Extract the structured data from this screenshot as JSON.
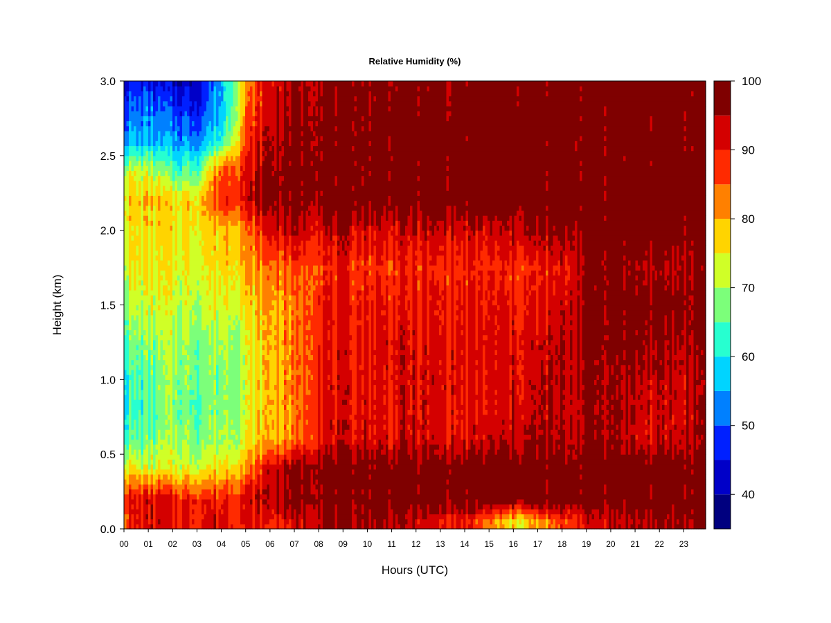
{
  "chart_data": {
    "type": "heatmap",
    "title": "Relative Humidity (%)",
    "xlabel": "Hours (UTC)",
    "ylabel": "Height (km)",
    "xlim": [
      0,
      23.9
    ],
    "ylim": [
      0,
      3.0
    ],
    "x_ticks": [
      "00",
      "01",
      "02",
      "03",
      "04",
      "05",
      "06",
      "07",
      "08",
      "09",
      "10",
      "11",
      "12",
      "13",
      "14",
      "15",
      "16",
      "17",
      "18",
      "19",
      "20",
      "21",
      "22",
      "23"
    ],
    "y_ticks": [
      "0.0",
      "0.5",
      "1.0",
      "1.5",
      "2.0",
      "2.5",
      "3.0"
    ],
    "colorbar": {
      "label_values": [
        "40",
        "50",
        "60",
        "70",
        "80",
        "90",
        "100"
      ],
      "levels": [
        35,
        40,
        45,
        50,
        55,
        60,
        65,
        70,
        75,
        80,
        85,
        90,
        95,
        100
      ],
      "colors": [
        "#00007f",
        "#0000c8",
        "#0020ff",
        "#0080ff",
        "#00d4ff",
        "#27ffd0",
        "#7cff7a",
        "#d0ff27",
        "#ffd400",
        "#ff8000",
        "#ff2a00",
        "#d40000",
        "#7f0000"
      ]
    },
    "heights_km": [
      0.05,
      0.2,
      0.4,
      0.6,
      0.8,
      1.0,
      1.25,
      1.5,
      1.75,
      2.0,
      2.2,
      2.4,
      2.6,
      2.8,
      3.0
    ],
    "hours": [
      0,
      1,
      2,
      3,
      4,
      5,
      6,
      7,
      8,
      9,
      10,
      11,
      12,
      13,
      14,
      15,
      16,
      17,
      18,
      19,
      20,
      21,
      22,
      23,
      23.9
    ],
    "rh_percent": [
      [
        88,
        92,
        90,
        91,
        92,
        90,
        89,
        92,
        96,
        97,
        96,
        95,
        93,
        90,
        90,
        82,
        76,
        80,
        86,
        92,
        93,
        95,
        95,
        96,
        98
      ],
      [
        90,
        92,
        90,
        90,
        90,
        92,
        95,
        97,
        99,
        99,
        99,
        99,
        99,
        99,
        99,
        99,
        99,
        99,
        99,
        99,
        99,
        99,
        99,
        99,
        99
      ],
      [
        76,
        74,
        74,
        74,
        77,
        80,
        94,
        97,
        99,
        99,
        99,
        99,
        99,
        99,
        99,
        99,
        99,
        99,
        99,
        99,
        99,
        99,
        99,
        99,
        99
      ],
      [
        64,
        66,
        70,
        68,
        70,
        74,
        80,
        82,
        92,
        92,
        93,
        92,
        93,
        92,
        91,
        93,
        94,
        95,
        94,
        96,
        97,
        93,
        92,
        94,
        96
      ],
      [
        62,
        64,
        68,
        66,
        68,
        72,
        80,
        82,
        92,
        91,
        92,
        91,
        92,
        91,
        90,
        91,
        92,
        93,
        93,
        96,
        97,
        94,
        92,
        93,
        96
      ],
      [
        62,
        65,
        69,
        67,
        68,
        72,
        80,
        82,
        91,
        91,
        92,
        92,
        92,
        92,
        91,
        91,
        92,
        93,
        94,
        96,
        97,
        95,
        93,
        94,
        96
      ],
      [
        66,
        68,
        70,
        68,
        70,
        72,
        80,
        82,
        91,
        90,
        91,
        92,
        91,
        91,
        91,
        91,
        92,
        92,
        94,
        97,
        98,
        97,
        95,
        95,
        97
      ],
      [
        70,
        72,
        72,
        72,
        74,
        76,
        80,
        82,
        90,
        90,
        90,
        90,
        90,
        90,
        90,
        90,
        90,
        90,
        92,
        97,
        98,
        98,
        98,
        98,
        98
      ],
      [
        74,
        75,
        74,
        74,
        77,
        80,
        84,
        86,
        88,
        88,
        88,
        88,
        88,
        88,
        88,
        88,
        88,
        88,
        90,
        97,
        98,
        96,
        94,
        95,
        97
      ],
      [
        76,
        76,
        76,
        76,
        79,
        82,
        92,
        94,
        93,
        94,
        93,
        92,
        93,
        93,
        92,
        92,
        94,
        95,
        96,
        98,
        99,
        99,
        99,
        99,
        99
      ],
      [
        78,
        78,
        77,
        78,
        88,
        92,
        98,
        98,
        99,
        99,
        99,
        99,
        98,
        99,
        99,
        99,
        99,
        99,
        99,
        99,
        99,
        99,
        99,
        99,
        99
      ],
      [
        72,
        72,
        64,
        66,
        86,
        90,
        97,
        99,
        99,
        99,
        99,
        99,
        99,
        99,
        99,
        99,
        99,
        99,
        99,
        99,
        99,
        99,
        99,
        99,
        99
      ],
      [
        56,
        55,
        54,
        54,
        62,
        86,
        96,
        97,
        99,
        99,
        99,
        99,
        99,
        99,
        99,
        99,
        99,
        99,
        99,
        99,
        99,
        99,
        99,
        99,
        99
      ],
      [
        50,
        52,
        48,
        47,
        56,
        82,
        94,
        96,
        98,
        98,
        99,
        99,
        99,
        98,
        99,
        99,
        99,
        99,
        99,
        99,
        99,
        99,
        99,
        99,
        99
      ],
      [
        46,
        45,
        42,
        42,
        56,
        80,
        92,
        95,
        97,
        97,
        98,
        98,
        98,
        97,
        98,
        98,
        98,
        98,
        99,
        99,
        99,
        99,
        99,
        99,
        99
      ]
    ]
  }
}
